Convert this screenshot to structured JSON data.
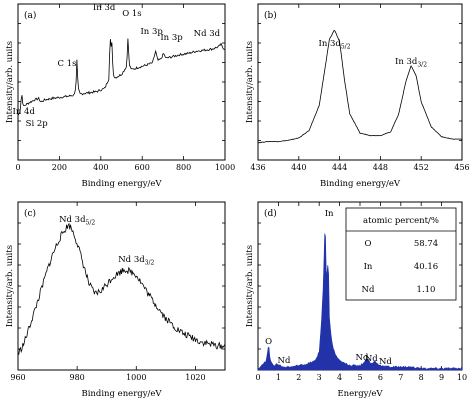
{
  "chart_data": [
    {
      "id": "a",
      "type": "line",
      "panel_label": "(a)",
      "xlabel": "Binding energy/eV",
      "ylabel": "Intensity/arb. units",
      "xlim": [
        0,
        1000
      ],
      "xticks": [
        "0",
        "200",
        "400",
        "600",
        "800",
        "1000"
      ],
      "annotations": [
        {
          "text": "In 4d",
          "x": 18
        },
        {
          "text": "Si 2p",
          "x": 100
        },
        {
          "text": "C 1s",
          "x": 285
        },
        {
          "text": "In 3d",
          "x": 445
        },
        {
          "text": "O 1s",
          "x": 531
        },
        {
          "text": "In 3p",
          "x": 665
        },
        {
          "text": "In 3p",
          "x": 703
        },
        {
          "text": "Nd 3d",
          "x": 980
        }
      ],
      "x": [
        0,
        10,
        18,
        25,
        40,
        60,
        80,
        100,
        110,
        130,
        160,
        200,
        240,
        270,
        280,
        285,
        290,
        300,
        340,
        380,
        420,
        440,
        445,
        448,
        452,
        460,
        470,
        500,
        525,
        531,
        537,
        550,
        580,
        620,
        650,
        665,
        675,
        690,
        703,
        715,
        740,
        780,
        820,
        860,
        900,
        940,
        970,
        980,
        990,
        1000
      ],
      "y": [
        0.22,
        0.26,
        0.42,
        0.3,
        0.32,
        0.34,
        0.36,
        0.37,
        0.34,
        0.36,
        0.37,
        0.38,
        0.39,
        0.4,
        0.47,
        0.72,
        0.46,
        0.41,
        0.42,
        0.43,
        0.46,
        0.55,
        1.0,
        0.7,
        0.93,
        0.58,
        0.55,
        0.58,
        0.65,
        0.91,
        0.66,
        0.62,
        0.64,
        0.66,
        0.68,
        0.78,
        0.7,
        0.71,
        0.76,
        0.72,
        0.73,
        0.75,
        0.76,
        0.78,
        0.79,
        0.8,
        0.82,
        0.84,
        0.81,
        0.8
      ]
    },
    {
      "id": "b",
      "type": "line",
      "panel_label": "(b)",
      "xlabel": "Binding energy/eV",
      "ylabel": "Intensity/arb. units",
      "xlim": [
        436,
        456
      ],
      "xticks": [
        "436",
        "440",
        "444",
        "448",
        "452",
        "456"
      ],
      "annotations": [
        {
          "text": "In 3d",
          "sub": "5/2",
          "x": 443.5
        },
        {
          "text": "In 3d",
          "sub": "3/2",
          "x": 451.0
        }
      ],
      "x": [
        436,
        437,
        438,
        439,
        440,
        441,
        442,
        442.5,
        443,
        443.5,
        444,
        444.5,
        445,
        446,
        447,
        448,
        449,
        449.8,
        450.5,
        451,
        451.5,
        452,
        453,
        454,
        455,
        456
      ],
      "y": [
        0.04,
        0.05,
        0.05,
        0.06,
        0.08,
        0.14,
        0.35,
        0.62,
        0.9,
        0.98,
        0.88,
        0.55,
        0.28,
        0.12,
        0.1,
        0.1,
        0.13,
        0.28,
        0.55,
        0.68,
        0.6,
        0.38,
        0.17,
        0.09,
        0.07,
        0.07
      ]
    },
    {
      "id": "c",
      "type": "line",
      "panel_label": "(c)",
      "xlabel": "Binding energy/eV",
      "ylabel": "Intensity/arb. units",
      "xlim": [
        960,
        1030
      ],
      "xticks": [
        "960",
        "980",
        "1000",
        "1020"
      ],
      "annotations": [
        {
          "text": "Nd 3d",
          "sub": "5/2",
          "x": 980
        },
        {
          "text": "Nd 3d",
          "sub": "3/2",
          "x": 1000
        }
      ],
      "x": [
        960,
        962,
        964,
        966,
        968,
        970,
        972,
        974,
        976,
        977,
        978,
        979,
        980,
        982,
        984,
        986,
        988,
        990,
        992,
        994,
        996,
        998,
        1000,
        1002,
        1004,
        1006,
        1008,
        1010,
        1012,
        1014,
        1016,
        1018,
        1020,
        1022,
        1024,
        1026,
        1028,
        1030
      ],
      "y": [
        0.04,
        0.12,
        0.25,
        0.38,
        0.52,
        0.66,
        0.78,
        0.88,
        0.95,
        0.98,
        0.96,
        0.91,
        0.85,
        0.7,
        0.55,
        0.48,
        0.5,
        0.55,
        0.6,
        0.63,
        0.66,
        0.64,
        0.62,
        0.55,
        0.48,
        0.42,
        0.36,
        0.3,
        0.26,
        0.22,
        0.19,
        0.17,
        0.15,
        0.13,
        0.12,
        0.11,
        0.1,
        0.1
      ]
    },
    {
      "id": "d",
      "type": "area",
      "panel_label": "(d)",
      "xlabel": "Energy/eV",
      "ylabel": "Intensity/arb. units",
      "xlim": [
        0,
        10
      ],
      "xticks": [
        "0",
        "1",
        "2",
        "3",
        "4",
        "5",
        "6",
        "7",
        "8",
        "9",
        "10"
      ],
      "fill_color": "#2233aa",
      "annotations": [
        {
          "text": "O",
          "x": 0.52
        },
        {
          "text": "Nd",
          "x": 0.98
        },
        {
          "text": "In",
          "x": 3.29
        },
        {
          "text": "Nd",
          "x": 4.9
        },
        {
          "text": "Nd",
          "x": 5.7
        },
        {
          "text": "Nd",
          "x": 6.1
        }
      ],
      "x": [
        0.0,
        0.2,
        0.4,
        0.52,
        0.6,
        0.8,
        0.98,
        1.2,
        1.6,
        2.0,
        2.4,
        2.8,
        3.0,
        3.1,
        3.2,
        3.29,
        3.35,
        3.45,
        3.5,
        3.6,
        3.7,
        3.8,
        3.9,
        4.0,
        4.3,
        4.6,
        5.0,
        5.2,
        5.35,
        5.5,
        5.6,
        5.72,
        5.85,
        6.0,
        6.5,
        7.0,
        7.5,
        8.0,
        8.5,
        9.0,
        9.5,
        10.0
      ],
      "y": [
        0.01,
        0.03,
        0.06,
        0.17,
        0.06,
        0.03,
        0.04,
        0.02,
        0.02,
        0.03,
        0.04,
        0.06,
        0.12,
        0.3,
        0.55,
        1.0,
        0.6,
        0.72,
        0.35,
        0.2,
        0.14,
        0.1,
        0.08,
        0.06,
        0.04,
        0.03,
        0.03,
        0.05,
        0.08,
        0.05,
        0.04,
        0.06,
        0.04,
        0.03,
        0.02,
        0.02,
        0.02,
        0.01,
        0.01,
        0.01,
        0.01,
        0.01
      ],
      "table": {
        "header": "atomic percent/%",
        "rows": [
          {
            "element": "O",
            "value": "58.74"
          },
          {
            "element": "In",
            "value": "40.16"
          },
          {
            "element": "Nd",
            "value": "1.10"
          }
        ]
      }
    }
  ]
}
